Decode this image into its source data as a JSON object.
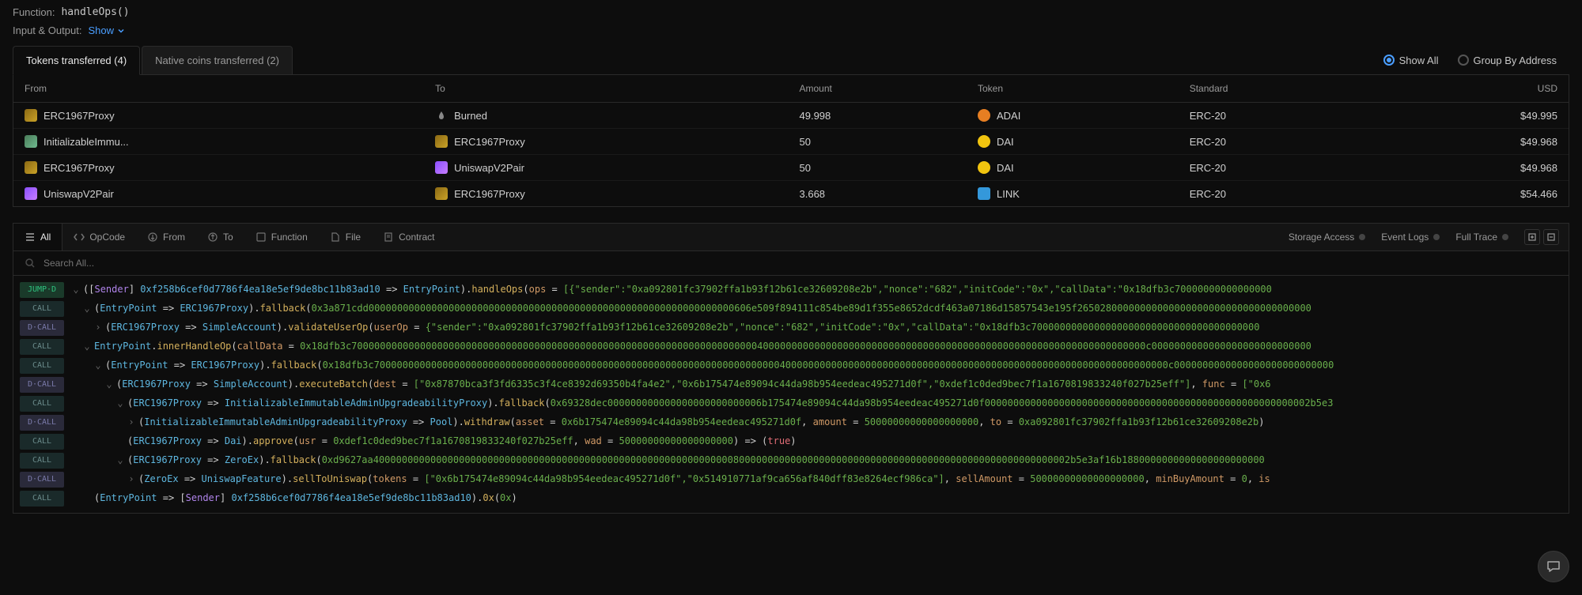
{
  "header": {
    "function_label": "Function:",
    "function_name": "handleOps()",
    "io_label": "Input & Output:",
    "show_label": "Show"
  },
  "tabs": {
    "tokens": "Tokens transferred (4)",
    "native": "Native coins transferred (2)",
    "show_all": "Show All",
    "group_by": "Group By Address"
  },
  "table": {
    "headers": {
      "from": "From",
      "to": "To",
      "amount": "Amount",
      "token": "Token",
      "standard": "Standard",
      "usd": "USD"
    },
    "rows": [
      {
        "from": "ERC1967Proxy",
        "from_icon": "brown",
        "to": "Burned",
        "to_icon": "burn",
        "amount": "49.998",
        "token": "ADAI",
        "token_icon": "orange",
        "standard": "ERC-20",
        "usd": "$49.995"
      },
      {
        "from": "InitializableImmu...",
        "from_icon": "green",
        "to": "ERC1967Proxy",
        "to_icon": "brown",
        "amount": "50",
        "token": "DAI",
        "token_icon": "yellow",
        "standard": "ERC-20",
        "usd": "$49.968"
      },
      {
        "from": "ERC1967Proxy",
        "from_icon": "brown",
        "to": "UniswapV2Pair",
        "to_icon": "purple",
        "amount": "50",
        "token": "DAI",
        "token_icon": "yellow",
        "standard": "ERC-20",
        "usd": "$49.968"
      },
      {
        "from": "UniswapV2Pair",
        "from_icon": "purple",
        "to": "ERC1967Proxy",
        "to_icon": "brown",
        "amount": "3.668",
        "token": "LINK",
        "token_icon": "blue",
        "standard": "ERC-20",
        "usd": "$54.466"
      }
    ]
  },
  "filters": {
    "all": "All",
    "opcode": "OpCode",
    "from": "From",
    "to": "To",
    "function": "Function",
    "file": "File",
    "contract": "Contract",
    "storage": "Storage Access",
    "events": "Event Logs",
    "trace": "Full Trace"
  },
  "search": {
    "placeholder": "Search All..."
  },
  "trace": {
    "lines": [
      {
        "op": "JUMP·D",
        "indent": 0,
        "toggle": "v",
        "html": "<span class='tr-white'>(</span><span class='tr-white'>[</span><span class='tr-purple'>Sender</span><span class='tr-white'>]</span> <span class='tr-cyan'>0xf258b6cef0d7786f4ea18e5ef9de8bc11b83ad10</span> <span class='tr-white'>=></span> <span class='tr-cyan'>EntryPoint</span><span class='tr-white'>).</span><span class='tr-yellow'>handleOps</span><span class='tr-white'>(</span><span class='tr-orange'>ops</span> <span class='tr-white'>=</span> <span class='tr-green'>[{\"sender\":\"0xa092801fc37902ffa1b93f12b61ce32609208e2b\",\"nonce\":\"682\",\"initCode\":\"0x\",\"callData\":\"0x18dfb3c70000000000000000</span>"
      },
      {
        "op": "CALL",
        "indent": 1,
        "toggle": "v",
        "html": "<span class='tr-white'>(</span><span class='tr-cyan'>EntryPoint</span> <span class='tr-white'>=></span> <span class='tr-cyan'>ERC1967Proxy</span><span class='tr-white'>).</span><span class='tr-yellow'>fallback</span><span class='tr-white'>(</span><span class='tr-green'>0x3a871cdd0000000000000000000000000000000000000000000000000000000000000000606e509f894111c854be89d1f355e8652dcdf463a07186d15857543e195f26502800000000000000000000000000000000000</span>"
      },
      {
        "op": "D·CALL",
        "indent": 2,
        "toggle": ">",
        "html": "<span class='tr-white'>(</span><span class='tr-cyan'>ERC1967Proxy</span> <span class='tr-white'>=></span> <span class='tr-cyan'>SimpleAccount</span><span class='tr-white'>).</span><span class='tr-yellow'>validateUserOp</span><span class='tr-white'>(</span><span class='tr-orange'>userOp</span> <span class='tr-white'>=</span> <span class='tr-green'>{\"sender\":\"0xa092801fc37902ffa1b93f12b61ce32609208e2b\",\"nonce\":\"682\",\"initCode\":\"0x\",\"callData\":\"0x18dfb3c7000000000000000000000000000000000000000</span>"
      },
      {
        "op": "CALL",
        "indent": 1,
        "toggle": "v",
        "html": "<span class='tr-cyan'>EntryPoint</span><span class='tr-white'>.</span><span class='tr-yellow'>innerHandleOp</span><span class='tr-white'>(</span><span class='tr-orange'>callData</span> <span class='tr-white'>=</span> <span class='tr-green'>0x18dfb3c7000000000000000000000000000000000000000000000000000000000000000000000040000000000000000000000000000000000000000000000000000000000000000000c0000000000000000000000000000</span>"
      },
      {
        "op": "CALL",
        "indent": 2,
        "toggle": "v",
        "html": "<span class='tr-white'>(</span><span class='tr-cyan'>EntryPoint</span> <span class='tr-white'>=></span> <span class='tr-cyan'>ERC1967Proxy</span><span class='tr-white'>).</span><span class='tr-yellow'>fallback</span><span class='tr-white'>(</span><span class='tr-green'>0x18dfb3c7000000000000000000000000000000000000000000000000000000000000000000000040000000000000000000000000000000000000000000000000000000000000000000c0000000000000000000000000000</span>"
      },
      {
        "op": "D·CALL",
        "indent": 3,
        "toggle": "v",
        "html": "<span class='tr-white'>(</span><span class='tr-cyan'>ERC1967Proxy</span> <span class='tr-white'>=></span> <span class='tr-cyan'>SimpleAccount</span><span class='tr-white'>).</span><span class='tr-yellow'>executeBatch</span><span class='tr-white'>(</span><span class='tr-orange'>dest</span> <span class='tr-white'>=</span> <span class='tr-green'>[\"0x87870bca3f3fd6335c3f4ce8392d69350b4fa4e2\",\"0x6b175474e89094c44da98b954eedeac495271d0f\",\"0xdef1c0ded9bec7f1a1670819833240f027b25eff\"]</span><span class='tr-white'>,</span> <span class='tr-orange'>func</span> <span class='tr-white'>=</span> <span class='tr-green'>[\"0x6</span>"
      },
      {
        "op": "CALL",
        "indent": 4,
        "toggle": "v",
        "html": "<span class='tr-white'>(</span><span class='tr-cyan'>ERC1967Proxy</span> <span class='tr-white'>=></span> <span class='tr-cyan'>InitializableImmutableAdminUpgradeabilityProxy</span><span class='tr-white'>).</span><span class='tr-yellow'>fallback</span><span class='tr-white'>(</span><span class='tr-green'>0x69328dec000000000000000000000000006b175474e89094c44da98b954eedeac495271d0f000000000000000000000000000000000000000000000000000000002b5e3</span>"
      },
      {
        "op": "D·CALL",
        "indent": 5,
        "toggle": ">",
        "html": "<span class='tr-white'>(</span><span class='tr-cyan'>InitializableImmutableAdminUpgradeabilityProxy</span> <span class='tr-white'>=></span> <span class='tr-cyan'>Pool</span><span class='tr-white'>).</span><span class='tr-yellow'>withdraw</span><span class='tr-white'>(</span><span class='tr-orange'>asset</span> <span class='tr-white'>=</span> <span class='tr-green'>0x6b175474e89094c44da98b954eedeac495271d0f</span><span class='tr-white'>,</span> <span class='tr-orange'>amount</span> <span class='tr-white'>=</span> <span class='tr-green'>50000000000000000000</span><span class='tr-white'>,</span> <span class='tr-orange'>to</span> <span class='tr-white'>=</span> <span class='tr-green'>0xa092801fc37902ffa1b93f12b61ce32609208e2b</span><span class='tr-white'>)</span>"
      },
      {
        "op": "CALL",
        "indent": 4,
        "toggle": "",
        "html": "<span class='tr-white'>(</span><span class='tr-cyan'>ERC1967Proxy</span> <span class='tr-white'>=></span> <span class='tr-cyan'>Dai</span><span class='tr-white'>).</span><span class='tr-yellow'>approve</span><span class='tr-white'>(</span><span class='tr-orange'>usr</span> <span class='tr-white'>=</span> <span class='tr-green'>0xdef1c0ded9bec7f1a1670819833240f027b25eff</span><span class='tr-white'>,</span> <span class='tr-orange'>wad</span> <span class='tr-white'>=</span> <span class='tr-green'>50000000000000000000</span><span class='tr-white'>)</span> <span class='tr-white'>=></span> <span class='tr-white'>(</span><span class='tr-red'>true</span><span class='tr-white'>)</span>"
      },
      {
        "op": "CALL",
        "indent": 4,
        "toggle": "v",
        "html": "<span class='tr-white'>(</span><span class='tr-cyan'>ERC1967Proxy</span> <span class='tr-white'>=></span> <span class='tr-cyan'>ZeroEx</span><span class='tr-white'>).</span><span class='tr-yellow'>fallback</span><span class='tr-white'>(</span><span class='tr-green'>0xd9627aa40000000000000000000000000000000000000000000000000000000000000080000000000000000000000000000000000000000000000000000000002b5e3af16b1880000000000000000000000</span>"
      },
      {
        "op": "D·CALL",
        "indent": 5,
        "toggle": ">",
        "html": "<span class='tr-white'>(</span><span class='tr-cyan'>ZeroEx</span> <span class='tr-white'>=></span> <span class='tr-cyan'>UniswapFeature</span><span class='tr-white'>).</span><span class='tr-yellow'>sellToUniswap</span><span class='tr-white'>(</span><span class='tr-orange'>tokens</span> <span class='tr-white'>=</span> <span class='tr-green'>[\"0x6b175474e89094c44da98b954eedeac495271d0f\",\"0x514910771af9ca656af840dff83e8264ecf986ca\"]</span><span class='tr-white'>,</span> <span class='tr-orange'>sellAmount</span> <span class='tr-white'>=</span> <span class='tr-green'>50000000000000000000</span><span class='tr-white'>,</span> <span class='tr-orange'>minBuyAmount</span> <span class='tr-white'>=</span> <span class='tr-green'>0</span><span class='tr-white'>,</span> <span class='tr-orange'>is</span>"
      },
      {
        "op": "CALL",
        "indent": 1,
        "toggle": "",
        "html": "<span class='tr-white'>(</span><span class='tr-cyan'>EntryPoint</span> <span class='tr-white'>=></span> <span class='tr-white'>[</span><span class='tr-purple'>Sender</span><span class='tr-white'>]</span> <span class='tr-cyan'>0xf258b6cef0d7786f4ea18e5ef9de8bc11b83ad10</span><span class='tr-white'>).</span><span class='tr-yellow'>0x</span><span class='tr-white'>(</span><span class='tr-green'>0x</span><span class='tr-white'>)</span>"
      }
    ]
  }
}
